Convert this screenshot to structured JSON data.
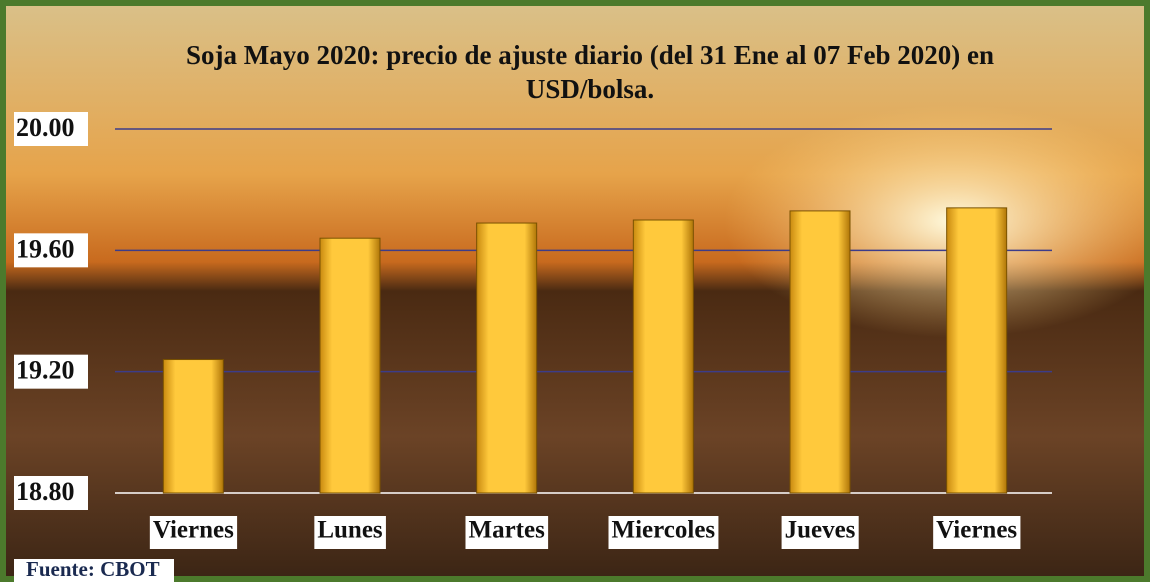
{
  "chart_data": {
    "type": "bar",
    "title": "Soja Mayo 2020: precio de ajuste diario  (del 31 Ene al 07 Feb 2020) en USD/bolsa.",
    "categories": [
      "Viernes",
      "Lunes",
      "Martes",
      "Miercoles",
      "Jueves",
      "Viernes"
    ],
    "values": [
      19.24,
      19.64,
      19.69,
      19.7,
      19.73,
      19.74
    ],
    "color": "#f5b320",
    "ylim": [
      18.8,
      20.0
    ],
    "yticks": [
      {
        "value": 18.8,
        "label": "18.80"
      },
      {
        "value": 19.2,
        "label": "19.20"
      },
      {
        "value": 19.6,
        "label": "19.60"
      },
      {
        "value": 20.0,
        "label": "20.00"
      }
    ],
    "grid": true,
    "source": "Fuente: CBOT"
  }
}
